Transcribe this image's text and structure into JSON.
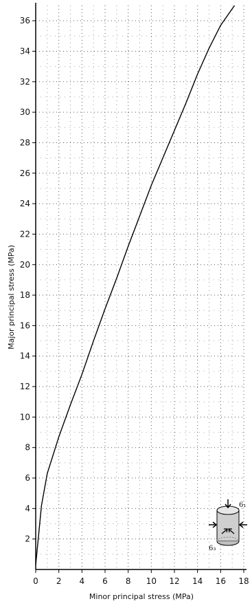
{
  "chart_data": {
    "type": "line",
    "xlabel": "Minor principal stress (MPa)",
    "ylabel": "Major principal stress (MPa)",
    "xlim": [
      0,
      18
    ],
    "ylim": [
      0,
      37
    ],
    "x_ticks": [
      0,
      2,
      4,
      6,
      8,
      10,
      12,
      14,
      16,
      18
    ],
    "y_ticks": [
      2,
      4,
      6,
      8,
      10,
      12,
      14,
      16,
      18,
      20,
      22,
      24,
      26,
      28,
      30,
      32,
      34,
      36
    ],
    "grid": true,
    "grid_style": "dotted",
    "series": [
      {
        "color": "#000000",
        "points": [
          [
            0,
            0.3
          ],
          [
            0.5,
            4.2
          ],
          [
            1,
            6.3
          ],
          [
            2,
            8.7
          ],
          [
            3,
            10.8
          ],
          [
            4,
            12.8
          ],
          [
            5,
            15.0
          ],
          [
            6,
            17.1
          ],
          [
            7,
            19.1
          ],
          [
            8,
            21.2
          ],
          [
            9,
            23.2
          ],
          [
            10,
            25.2
          ],
          [
            11,
            27.0
          ],
          [
            12,
            28.8
          ],
          [
            13,
            30.6
          ],
          [
            14,
            32.5
          ],
          [
            15,
            34.2
          ],
          [
            16,
            35.7
          ],
          [
            17.2,
            37.0
          ]
        ]
      }
    ],
    "inset": {
      "icon": "cylinder-specimen-icon",
      "sigma1_label": "6₁",
      "sigma3_label": "6₃"
    }
  }
}
